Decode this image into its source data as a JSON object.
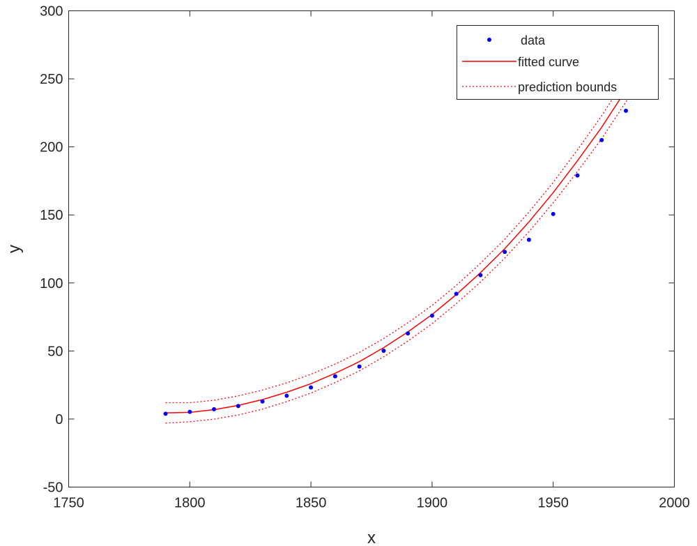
{
  "chart_data": {
    "type": "scatter",
    "xlabel": "x",
    "ylabel": "y",
    "xlim": [
      1750,
      2000
    ],
    "ylim": [
      -50,
      300
    ],
    "xticks": [
      "1750",
      "1800",
      "1850",
      "1900",
      "1950",
      "2000"
    ],
    "yticks": [
      "-50",
      "0",
      "50",
      "100",
      "150",
      "200",
      "250",
      "300"
    ],
    "grid": false,
    "legend_position": "top-right",
    "series": [
      {
        "name": "data",
        "kind": "points",
        "color": "#0000ff",
        "x": [
          1790,
          1800,
          1810,
          1820,
          1830,
          1840,
          1850,
          1860,
          1870,
          1880,
          1890,
          1900,
          1910,
          1920,
          1930,
          1940,
          1950,
          1960,
          1970,
          1980
        ],
        "y": [
          3.9,
          5.3,
          7.2,
          9.6,
          12.9,
          17.1,
          23.2,
          31.4,
          38.6,
          50.2,
          62.9,
          76.0,
          92.0,
          105.7,
          122.8,
          131.7,
          150.7,
          179.0,
          205.0,
          226.5
        ]
      },
      {
        "name": "fitted curve",
        "kind": "line",
        "color": "#ff0000",
        "x": [
          1790,
          1800,
          1810,
          1820,
          1830,
          1840,
          1850,
          1860,
          1870,
          1880,
          1890,
          1900,
          1910,
          1920,
          1930,
          1940,
          1950,
          1960,
          1970,
          1980,
          1985
        ],
        "y": [
          4.5,
          4.9,
          6.9,
          10.0,
          14.3,
          19.7,
          26.0,
          33.6,
          42.2,
          52.4,
          64.0,
          76.8,
          91.5,
          107.6,
          125.2,
          144.9,
          166.4,
          189.8,
          214.4,
          241.8,
          256.3
        ]
      },
      {
        "name": "prediction bounds",
        "kind": "dotted-line",
        "color": "#ff0000",
        "x": [
          1790,
          1800,
          1810,
          1820,
          1830,
          1840,
          1850,
          1860,
          1870,
          1880,
          1890,
          1900,
          1910,
          1920,
          1930,
          1940,
          1950,
          1960,
          1970,
          1980,
          1985
        ],
        "y": [
          12.0,
          12.0,
          13.8,
          17.0,
          21.3,
          26.6,
          32.9,
          40.4,
          49.0,
          59.1,
          70.7,
          83.5,
          98.2,
          114.5,
          132.1,
          152.1,
          173.9,
          197.8,
          222.8,
          250.6,
          265.3
        ]
      },
      {
        "kind": "dotted-line",
        "color": "#ff0000",
        "x": [
          1790,
          1800,
          1810,
          1820,
          1830,
          1840,
          1850,
          1860,
          1870,
          1880,
          1890,
          1900,
          1910,
          1920,
          1930,
          1940,
          1950,
          1960,
          1970,
          1980,
          1985
        ],
        "y": [
          -3.0,
          -2.0,
          -0.1,
          3.0,
          7.3,
          12.8,
          19.1,
          26.8,
          35.4,
          45.7,
          57.3,
          70.1,
          84.8,
          100.7,
          118.3,
          137.7,
          158.9,
          181.8,
          206.0,
          233.0,
          247.3
        ]
      }
    ]
  }
}
